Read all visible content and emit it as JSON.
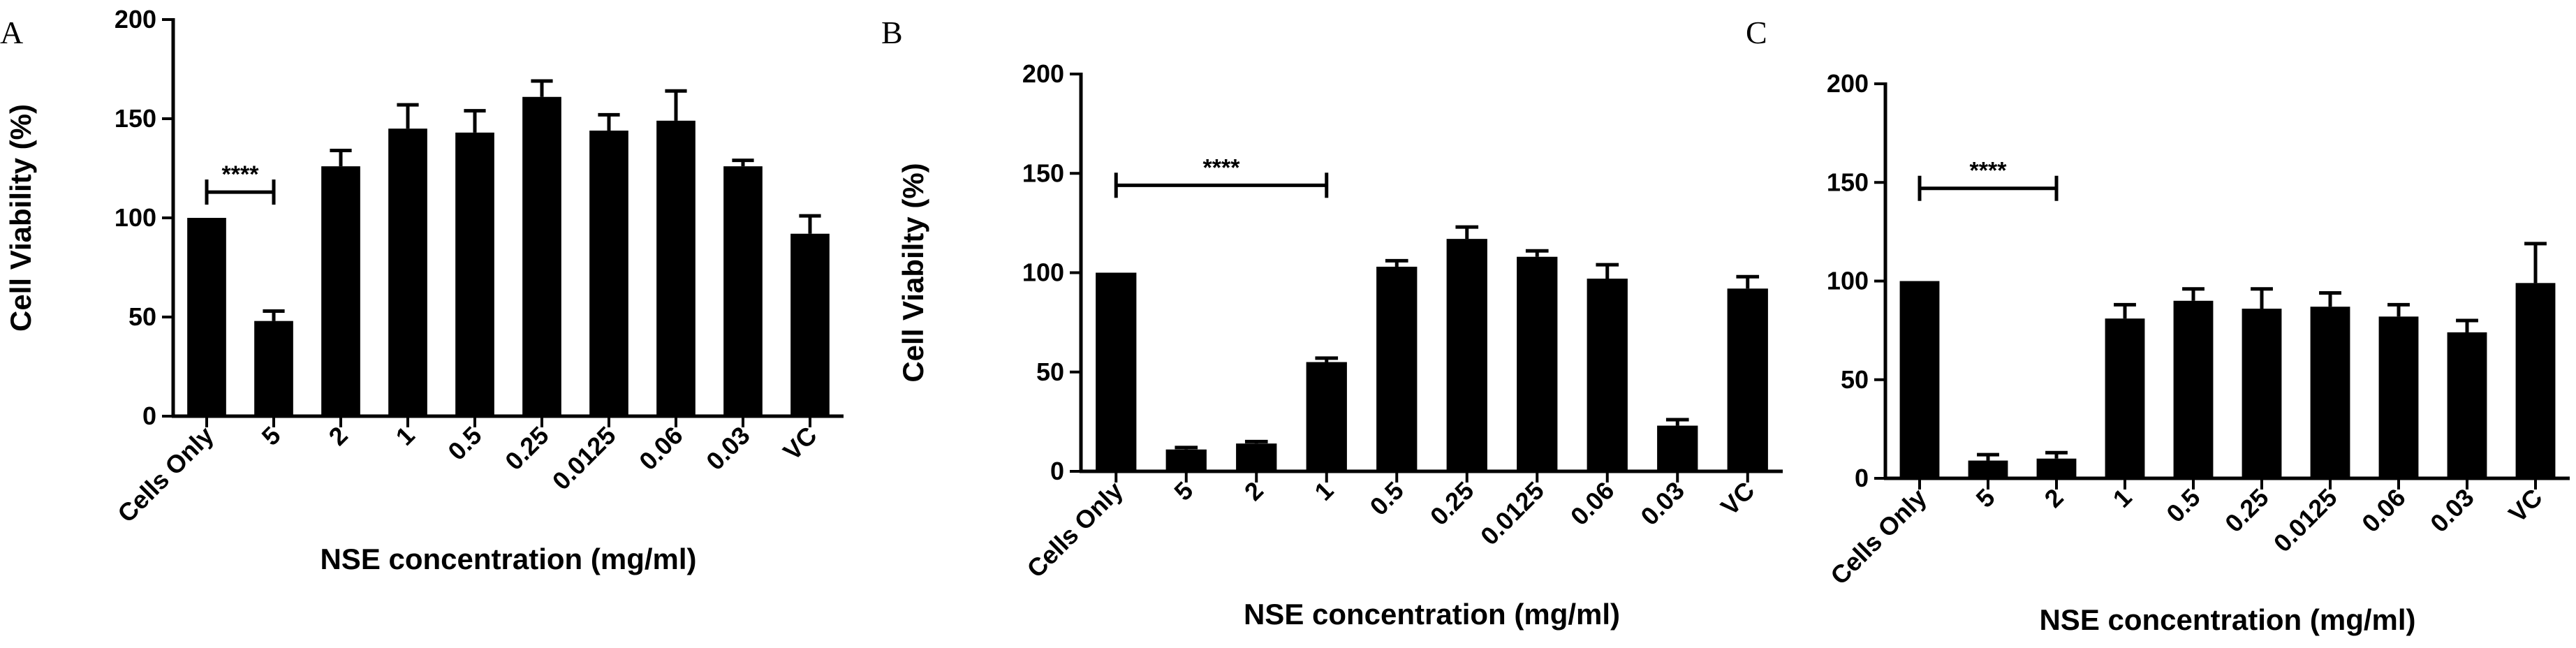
{
  "chart_data": [
    {
      "type": "bar",
      "panel": "A",
      "title": "",
      "xlabel": "NSE concentration (mg/ml)",
      "ylabel": "Cell Viability (%)",
      "ylim": [
        0,
        200
      ],
      "yticks": [
        "0",
        "50",
        "100",
        "150",
        "200"
      ],
      "categories": [
        "Cells Only",
        "5",
        "2",
        "1",
        "0.5",
        "0.25",
        "0.0125",
        "0.06",
        "0.03",
        "VC"
      ],
      "values": [
        100,
        48,
        126,
        145,
        143,
        161,
        144,
        149,
        126,
        92
      ],
      "errors": [
        0,
        5,
        8,
        12,
        11,
        8,
        8,
        15,
        3,
        9
      ],
      "significance": {
        "label": "****",
        "from": "Cells Only",
        "to": "5",
        "y": 113
      }
    },
    {
      "type": "bar",
      "panel": "B",
      "title": "",
      "xlabel": "NSE concentration (mg/ml)",
      "ylabel": "Cell Viabilty (%)",
      "ylim": [
        0,
        200
      ],
      "yticks": [
        "0",
        "50",
        "100",
        "150",
        "200"
      ],
      "categories": [
        "Cells Only",
        "5",
        "2",
        "1",
        "0.5",
        "0.25",
        "0.0125",
        "0.06",
        "0.03",
        "VC"
      ],
      "values": [
        100,
        11,
        14,
        55,
        103,
        117,
        108,
        97,
        23,
        92
      ],
      "errors": [
        0,
        1,
        1,
        2,
        3,
        6,
        3,
        7,
        3,
        6
      ],
      "significance": {
        "label": "****",
        "from": "Cells Only",
        "to": "1",
        "y": 144
      }
    },
    {
      "type": "bar",
      "panel": "C",
      "title": "",
      "xlabel": "NSE concentration (mg/ml)",
      "ylabel": "",
      "ylim": [
        0,
        200
      ],
      "yticks": [
        "0",
        "50",
        "100",
        "150",
        "200"
      ],
      "categories": [
        "Cells Only",
        "5",
        "2",
        "1",
        "0.5",
        "0.25",
        "0.0125",
        "0.06",
        "0.03",
        "VC"
      ],
      "values": [
        100,
        9,
        10,
        81,
        90,
        86,
        87,
        82,
        74,
        99
      ],
      "errors": [
        0,
        3,
        3,
        7,
        6,
        10,
        7,
        6,
        6,
        20
      ],
      "significance": {
        "label": "****",
        "from": "Cells Only",
        "to": "2",
        "y": 147
      }
    }
  ]
}
